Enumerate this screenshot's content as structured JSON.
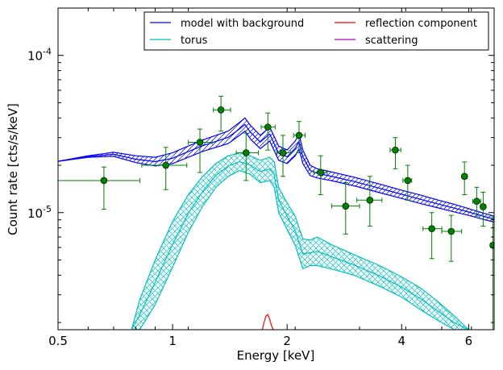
{
  "chart_data": {
    "type": "scatter",
    "xlabel": "Energy [keV]",
    "ylabel": "Count rate [cts/s/keV]",
    "xscale": "log",
    "yscale": "log",
    "xlim": [
      0.5,
      7.0
    ],
    "ylim": [
      1.8e-06,
      0.0002
    ],
    "xticks": [
      {
        "value": 0.5,
        "label": "0.5"
      },
      {
        "value": 1,
        "label": "1"
      },
      {
        "value": 2,
        "label": "2"
      },
      {
        "value": 4,
        "label": "4"
      },
      {
        "value": 6,
        "label": "6"
      }
    ],
    "yticks": [
      {
        "value": 1e-05,
        "base": "10",
        "exp": "-5"
      },
      {
        "value": 0.0001,
        "base": "10",
        "exp": "-4"
      }
    ],
    "legend": {
      "position": "top-right",
      "columns": 2,
      "entries": [
        {
          "label": "model with background",
          "color": "#0000ff"
        },
        {
          "label": "reflection component",
          "color": "#ff0000"
        },
        {
          "label": "torus",
          "color": "#00bfbf"
        },
        {
          "label": "scattering",
          "color": "#bf00bf"
        }
      ]
    },
    "data_points": {
      "marker_color": "#008000",
      "errorbar_color": "#008000",
      "points": [
        {
          "x": 0.66,
          "y": 1.6e-05,
          "xerr": [
            0.5,
            0.82
          ],
          "yerr": [
            1.05e-05,
            1.95e-05
          ]
        },
        {
          "x": 0.96,
          "y": 2e-05,
          "xerr": [
            0.83,
            1.09
          ],
          "yerr": [
            1.4e-05,
            2.6e-05
          ]
        },
        {
          "x": 1.18,
          "y": 2.8e-05,
          "xerr": [
            1.1,
            1.27
          ],
          "yerr": [
            1.8e-05,
            3.4e-05
          ]
        },
        {
          "x": 1.34,
          "y": 4.5e-05,
          "xerr": [
            1.28,
            1.42
          ],
          "yerr": [
            3.3e-05,
            5.5e-05
          ]
        },
        {
          "x": 1.56,
          "y": 2.4e-05,
          "xerr": [
            1.47,
            1.68
          ],
          "yerr": [
            1.6e-05,
            3.2e-05
          ]
        },
        {
          "x": 1.78,
          "y": 3.5e-05,
          "xerr": [
            1.71,
            1.86
          ],
          "yerr": [
            2.5e-05,
            4.3e-05
          ]
        },
        {
          "x": 1.95,
          "y": 2.4e-05,
          "xerr": [
            1.88,
            2.04
          ],
          "yerr": [
            1.7e-05,
            3.1e-05
          ]
        },
        {
          "x": 2.15,
          "y": 3.1e-05,
          "xerr": [
            2.08,
            2.23
          ],
          "yerr": [
            2.4e-05,
            3.8e-05
          ]
        },
        {
          "x": 2.45,
          "y": 1.8e-05,
          "xerr": [
            2.35,
            2.55
          ],
          "yerr": [
            1.3e-05,
            2.3e-05
          ]
        },
        {
          "x": 2.85,
          "y": 1.1e-05,
          "xerr": [
            2.62,
            3.1
          ],
          "yerr": [
            7.3e-06,
            1.55e-05
          ]
        },
        {
          "x": 3.3,
          "y": 1.2e-05,
          "xerr": [
            3.05,
            3.55
          ],
          "yerr": [
            8.2e-06,
            1.7e-05
          ]
        },
        {
          "x": 3.85,
          "y": 2.5e-05,
          "xerr": [
            3.73,
            3.98
          ],
          "yerr": [
            1.9e-05,
            3e-05
          ]
        },
        {
          "x": 4.15,
          "y": 1.6e-05,
          "xerr": [
            4.03,
            4.25
          ],
          "yerr": [
            1.2e-05,
            2e-05
          ]
        },
        {
          "x": 4.8,
          "y": 7.9e-06,
          "xerr": [
            4.55,
            5.1
          ],
          "yerr": [
            5.1e-06,
            1e-05
          ]
        },
        {
          "x": 5.4,
          "y": 7.6e-06,
          "xerr": [
            5.1,
            5.75
          ],
          "yerr": [
            4.9e-06,
            9.6e-06
          ]
        },
        {
          "x": 5.85,
          "y": 1.7e-05,
          "xerr": [
            5.76,
            5.95
          ],
          "yerr": [
            1.3e-05,
            2.1e-05
          ]
        },
        {
          "x": 6.3,
          "y": 1.18e-05,
          "xerr": [
            6.15,
            6.45
          ],
          "yerr": [
            9.5e-06,
            1.45e-05
          ]
        },
        {
          "x": 6.55,
          "y": 1.09e-05,
          "xerr": [
            6.45,
            6.65
          ],
          "yerr": [
            8.2e-06,
            1.35e-05
          ]
        },
        {
          "x": 6.95,
          "y": 6.2e-06,
          "xerr": [
            6.85,
            7.0
          ],
          "yerr": [
            1.8e-06,
            9.5e-06
          ]
        }
      ]
    },
    "model_with_background": {
      "color": "#0000ff",
      "band_x": [
        0.5,
        0.6,
        0.7,
        0.8,
        0.9,
        1.0,
        1.1,
        1.2,
        1.3,
        1.4,
        1.5,
        1.55,
        1.6,
        1.7,
        1.8,
        1.9,
        2.0,
        2.1,
        2.15,
        2.2,
        2.3,
        2.4,
        2.6,
        3.0,
        3.5,
        4.0,
        4.5,
        5.0,
        5.5,
        6.0,
        6.5,
        7.0
      ],
      "lower": [
        2.12e-05,
        2.25e-05,
        2.28e-05,
        2.08e-05,
        1.98e-05,
        2.05e-05,
        2.25e-05,
        2.45e-05,
        2.6e-05,
        2.75e-05,
        3.1e-05,
        3.3e-05,
        2.95e-05,
        2.55e-05,
        2.85e-05,
        2.15e-05,
        2.05e-05,
        2.3e-05,
        2.55e-05,
        2.05e-05,
        1.72e-05,
        1.66e-05,
        1.6e-05,
        1.48e-05,
        1.34e-05,
        1.23e-05,
        1.14e-05,
        1.07e-05,
        1.01e-05,
        9.6e-06,
        9.1e-06,
        8.7e-06
      ],
      "upper": [
        2.12e-05,
        2.3e-05,
        2.42e-05,
        2.3e-05,
        2.25e-05,
        2.4e-05,
        2.65e-05,
        2.9e-05,
        3.1e-05,
        3.3e-05,
        3.75e-05,
        4e-05,
        3.6e-05,
        3.1e-05,
        3.5e-05,
        2.65e-05,
        2.5e-05,
        2.85e-05,
        3.15e-05,
        2.5e-05,
        2e-05,
        1.9e-05,
        1.82e-05,
        1.68e-05,
        1.52e-05,
        1.39e-05,
        1.29e-05,
        1.2e-05,
        1.13e-05,
        1.06e-05,
        1e-05,
        9.5e-06
      ]
    },
    "torus": {
      "color": "#00bfbf",
      "band_x": [
        0.78,
        0.82,
        0.9,
        1.0,
        1.1,
        1.2,
        1.3,
        1.4,
        1.5,
        1.6,
        1.7,
        1.8,
        1.85,
        1.9,
        2.0,
        2.1,
        2.2,
        2.3,
        2.4,
        2.6,
        3.0,
        3.5,
        4.0,
        4.5,
        5.0,
        5.5,
        6.0
      ],
      "upper": [
        1.8e-06,
        2.8e-06,
        5e-06,
        8.8e-06,
        1.3e-05,
        1.7e-05,
        2.05e-05,
        2.3e-05,
        2.4e-05,
        2.3e-05,
        2.15e-05,
        2.25e-05,
        2.1e-05,
        1.45e-05,
        1.15e-05,
        9.5e-06,
        6.8e-06,
        6.7e-06,
        7e-06,
        6.3e-06,
        5.4e-06,
        4.6e-06,
        3.9e-06,
        3.3e-06,
        2.7e-06,
        2.2e-06,
        1.8e-06
      ],
      "lower": [
        1.8e-06,
        1.8e-06,
        2.6e-06,
        4.5e-06,
        7.5e-06,
        1.1e-05,
        1.45e-05,
        1.7e-05,
        1.85e-05,
        1.75e-05,
        1.55e-05,
        1.6e-05,
        1.45e-05,
        1e-05,
        7.8e-06,
        6.2e-06,
        4.4e-06,
        4.6e-06,
        4.6e-06,
        4.4e-06,
        4e-06,
        3.4e-06,
        2.9e-06,
        2.4e-06,
        2.05e-06,
        1.8e-06,
        1.8e-06
      ]
    },
    "reflection_component": {
      "color": "#ff0000",
      "x": [
        1.72,
        1.74,
        1.76,
        1.78,
        1.8,
        1.82,
        1.84
      ],
      "y": [
        1.8e-06,
        2e-06,
        2.2e-06,
        2.25e-06,
        2.1e-06,
        1.9e-06,
        1.8e-06
      ]
    },
    "scattering": {
      "color": "#bf00bf",
      "x": [],
      "y": []
    }
  }
}
